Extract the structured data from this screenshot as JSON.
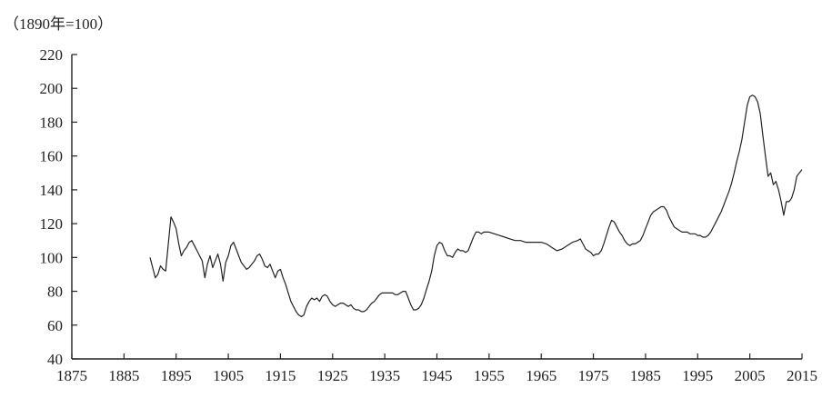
{
  "chart_data": {
    "type": "line",
    "title": "",
    "unit_label": "（1890年=100）",
    "xlabel": "",
    "ylabel": "",
    "xlim": [
      1875,
      2015
    ],
    "ylim": [
      40,
      220
    ],
    "x_ticks": [
      1875,
      1885,
      1895,
      1905,
      1915,
      1925,
      1935,
      1945,
      1955,
      1965,
      1975,
      1985,
      1995,
      2005,
      2015
    ],
    "y_ticks": [
      40,
      60,
      80,
      100,
      120,
      140,
      160,
      180,
      200,
      220
    ],
    "grid": false,
    "legend": "none",
    "line_color": "#222222",
    "series": [
      {
        "x": [
          1890,
          1890.5,
          1891,
          1891.5,
          1892,
          1892.5,
          1893,
          1893.5,
          1894,
          1894.5,
          1895,
          1895.5,
          1896,
          1896.5,
          1897,
          1897.5,
          1898,
          1898.5,
          1899,
          1899.5,
          1900,
          1900.5,
          1901,
          1901.5,
          1902,
          1902.5,
          1903,
          1903.5,
          1904,
          1904.5,
          1905,
          1905.5,
          1906,
          1906.5,
          1907,
          1907.5,
          1908,
          1908.5,
          1909,
          1909.5,
          1910,
          1910.5,
          1911,
          1911.5,
          1912,
          1912.5,
          1913,
          1913.5,
          1914,
          1914.5,
          1915,
          1915.5,
          1916,
          1916.5,
          1917,
          1917.5,
          1918,
          1918.5,
          1919,
          1919.5,
          1920,
          1920.5,
          1921,
          1921.5,
          1922,
          1922.5,
          1923,
          1923.5,
          1924,
          1924.5,
          1925,
          1925.5,
          1926,
          1926.5,
          1927,
          1927.5,
          1928,
          1928.5,
          1929,
          1929.5,
          1930,
          1930.5,
          1931,
          1931.5,
          1932,
          1932.5,
          1933,
          1933.5,
          1934,
          1934.5,
          1935,
          1935.5,
          1936,
          1936.5,
          1937,
          1937.5,
          1938,
          1938.5,
          1939,
          1939.5,
          1940,
          1940.5,
          1941,
          1941.5,
          1942,
          1942.5,
          1943,
          1943.5,
          1944,
          1944.5,
          1945,
          1945.5,
          1946,
          1946.5,
          1947,
          1947.5,
          1948,
          1948.5,
          1949,
          1949.5,
          1950,
          1950.5,
          1951,
          1951.5,
          1952,
          1952.5,
          1953,
          1953.5,
          1954,
          1954.5,
          1955,
          1956,
          1957,
          1958,
          1959,
          1960,
          1961,
          1962,
          1963,
          1964,
          1965,
          1966,
          1967,
          1968,
          1969,
          1970,
          1971,
          1972,
          1972.5,
          1973,
          1973.5,
          1974,
          1974.5,
          1975,
          1975.5,
          1976,
          1976.5,
          1977,
          1977.5,
          1978,
          1978.5,
          1979,
          1979.5,
          1980,
          1980.5,
          1981,
          1981.5,
          1982,
          1982.5,
          1983,
          1983.5,
          1984,
          1984.5,
          1985,
          1985.5,
          1986,
          1986.5,
          1987,
          1987.5,
          1988,
          1988.5,
          1989,
          1989.5,
          1990,
          1990.5,
          1991,
          1991.5,
          1992,
          1992.5,
          1993,
          1993.5,
          1994,
          1994.5,
          1995,
          1995.5,
          1996,
          1996.5,
          1997,
          1997.5,
          1998,
          1998.5,
          1999,
          1999.5,
          2000,
          2000.5,
          2001,
          2001.5,
          2002,
          2002.5,
          2003,
          2003.5,
          2004,
          2004.5,
          2005,
          2005.5,
          2006,
          2006.5,
          2007,
          2007.5,
          2008,
          2008.5,
          2009,
          2009.5,
          2010,
          2010.5,
          2011,
          2011.5,
          2012,
          2012.5,
          2013,
          2013.5,
          2014,
          2014.5,
          2015
        ],
        "y": [
          100,
          94,
          88,
          90,
          95,
          93,
          92,
          108,
          124,
          121,
          117,
          108,
          101,
          104,
          106,
          109,
          110,
          107,
          104,
          101,
          98,
          88,
          96,
          101,
          94,
          98,
          102,
          96,
          86,
          97,
          101,
          107,
          109,
          105,
          101,
          97,
          95,
          93,
          94,
          96,
          98,
          101,
          102,
          99,
          95,
          94,
          96,
          92,
          88,
          92,
          93,
          88,
          84,
          79,
          74,
          71,
          68,
          66,
          65,
          66,
          71,
          74,
          76,
          75,
          76,
          74,
          77,
          78,
          77,
          74,
          72,
          71,
          72,
          73,
          73,
          72,
          71,
          72,
          70,
          69,
          69,
          68,
          68,
          69,
          71,
          73,
          74,
          76,
          78,
          79,
          79,
          79,
          79,
          79,
          78,
          78,
          79,
          80,
          80,
          76,
          72,
          69,
          69,
          70,
          72,
          76,
          81,
          86,
          92,
          101,
          107,
          109,
          108,
          104,
          101,
          101,
          100,
          103,
          105,
          104,
          104,
          103,
          104,
          108,
          112,
          115,
          115,
          114,
          115,
          115,
          115,
          114,
          113,
          112,
          111,
          110,
          110,
          109,
          109,
          109,
          109,
          108,
          106,
          104,
          105,
          107,
          109,
          110,
          111,
          108,
          105,
          104,
          103,
          101,
          102,
          102,
          104,
          108,
          113,
          118,
          122,
          121,
          118,
          115,
          113,
          110,
          108,
          107,
          108,
          108,
          109,
          110,
          113,
          117,
          121,
          125,
          127,
          128,
          129,
          130,
          130,
          128,
          124,
          121,
          118,
          117,
          116,
          115,
          115,
          115,
          114,
          114,
          114,
          113,
          113,
          112,
          112,
          113,
          115,
          118,
          121,
          124,
          127,
          131,
          135,
          139,
          144,
          150,
          157,
          163,
          170,
          180,
          190,
          195,
          196,
          195,
          192,
          185,
          172,
          160,
          148,
          150,
          143,
          145,
          140,
          133,
          125,
          133,
          133,
          135,
          140,
          148,
          150,
          152
        ]
      }
    ]
  }
}
